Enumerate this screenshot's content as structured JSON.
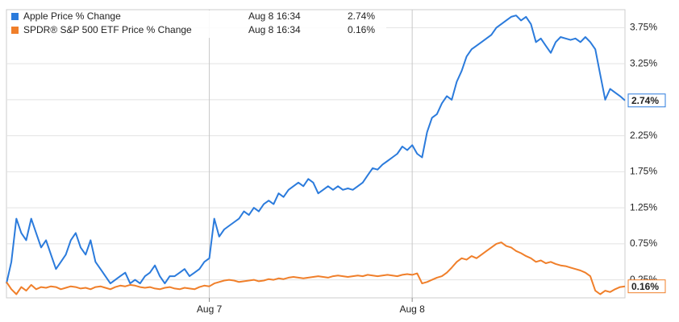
{
  "chart_data": {
    "type": "line",
    "categories": [
      null,
      null,
      null,
      null,
      null,
      null,
      null,
      null,
      null,
      null,
      null,
      null,
      null,
      null,
      null,
      null,
      null,
      null,
      null,
      null,
      null,
      null,
      null,
      null,
      null,
      null,
      null,
      null,
      null,
      null,
      null,
      null,
      null,
      null,
      null,
      null,
      null,
      null,
      null,
      null,
      null,
      "Aug 7",
      null,
      null,
      null,
      null,
      null,
      null,
      null,
      null,
      null,
      null,
      null,
      null,
      null,
      null,
      null,
      null,
      null,
      null,
      null,
      null,
      null,
      null,
      null,
      null,
      null,
      null,
      null,
      null,
      null,
      null,
      null,
      null,
      null,
      null,
      null,
      null,
      null,
      null,
      null,
      null,
      "Aug 8",
      null,
      null,
      null,
      null,
      null,
      null,
      null,
      null,
      null,
      null,
      null,
      null,
      null,
      null,
      null,
      null,
      null,
      null,
      null,
      null,
      null,
      null,
      null,
      null,
      null,
      null,
      null,
      null,
      null,
      null,
      null,
      null,
      null,
      null,
      null,
      null,
      null,
      null,
      null,
      null,
      null,
      null,
      null
    ],
    "series": [
      {
        "name": "Apple Price % Change",
        "color": "#2b7bdc",
        "legend_date": "Aug 8 16:34",
        "end_label": "2.74%",
        "values": [
          0.2,
          0.5,
          1.1,
          0.9,
          0.8,
          1.1,
          0.9,
          0.7,
          0.8,
          0.6,
          0.4,
          0.5,
          0.6,
          0.8,
          0.9,
          0.7,
          0.6,
          0.8,
          0.5,
          0.4,
          0.3,
          0.2,
          0.25,
          0.3,
          0.35,
          0.2,
          0.25,
          0.2,
          0.3,
          0.35,
          0.45,
          0.3,
          0.2,
          0.3,
          0.3,
          0.35,
          0.4,
          0.3,
          0.35,
          0.4,
          0.5,
          0.55,
          1.1,
          0.85,
          0.95,
          1.0,
          1.05,
          1.1,
          1.2,
          1.15,
          1.25,
          1.2,
          1.3,
          1.35,
          1.3,
          1.45,
          1.4,
          1.5,
          1.55,
          1.6,
          1.55,
          1.65,
          1.6,
          1.45,
          1.5,
          1.55,
          1.5,
          1.55,
          1.5,
          1.52,
          1.5,
          1.55,
          1.6,
          1.7,
          1.8,
          1.78,
          1.85,
          1.9,
          1.95,
          2.0,
          2.1,
          2.05,
          2.12,
          2.0,
          1.95,
          2.3,
          2.5,
          2.55,
          2.7,
          2.8,
          2.75,
          3.0,
          3.15,
          3.35,
          3.45,
          3.5,
          3.55,
          3.6,
          3.65,
          3.75,
          3.8,
          3.85,
          3.9,
          3.92,
          3.85,
          3.9,
          3.8,
          3.55,
          3.6,
          3.5,
          3.4,
          3.55,
          3.62,
          3.6,
          3.58,
          3.6,
          3.55,
          3.62,
          3.55,
          3.45,
          3.1,
          2.75,
          2.9,
          2.85,
          2.8,
          2.74
        ]
      },
      {
        "name": "SPDR® S&P 500 ETF Price % Change",
        "color": "#f07f2a",
        "legend_date": "Aug 8 16:34",
        "end_label": "0.16%",
        "values": [
          0.22,
          0.12,
          0.05,
          0.15,
          0.1,
          0.18,
          0.12,
          0.15,
          0.14,
          0.16,
          0.15,
          0.12,
          0.14,
          0.16,
          0.15,
          0.13,
          0.14,
          0.12,
          0.15,
          0.16,
          0.14,
          0.12,
          0.15,
          0.17,
          0.16,
          0.18,
          0.17,
          0.15,
          0.14,
          0.15,
          0.13,
          0.12,
          0.14,
          0.15,
          0.13,
          0.12,
          0.14,
          0.13,
          0.12,
          0.15,
          0.17,
          0.16,
          0.2,
          0.22,
          0.24,
          0.25,
          0.24,
          0.22,
          0.23,
          0.24,
          0.25,
          0.23,
          0.24,
          0.26,
          0.25,
          0.27,
          0.26,
          0.28,
          0.29,
          0.28,
          0.27,
          0.28,
          0.29,
          0.3,
          0.29,
          0.28,
          0.3,
          0.31,
          0.3,
          0.29,
          0.3,
          0.31,
          0.3,
          0.32,
          0.31,
          0.3,
          0.31,
          0.32,
          0.31,
          0.3,
          0.32,
          0.33,
          0.32,
          0.34,
          0.2,
          0.22,
          0.25,
          0.28,
          0.3,
          0.35,
          0.42,
          0.5,
          0.55,
          0.53,
          0.58,
          0.55,
          0.6,
          0.65,
          0.7,
          0.75,
          0.77,
          0.72,
          0.7,
          0.65,
          0.62,
          0.58,
          0.55,
          0.5,
          0.52,
          0.48,
          0.5,
          0.47,
          0.45,
          0.44,
          0.42,
          0.4,
          0.38,
          0.35,
          0.3,
          0.1,
          0.05,
          0.1,
          0.08,
          0.12,
          0.15,
          0.16
        ]
      }
    ],
    "ylim": [
      0,
      4
    ],
    "yticks": [
      {
        "value": 0.25,
        "label": "0.25%"
      },
      {
        "value": 0.75,
        "label": "0.75%"
      },
      {
        "value": 1.25,
        "label": "1.25%"
      },
      {
        "value": 1.75,
        "label": "1.75%"
      },
      {
        "value": 2.25,
        "label": "2.25%"
      },
      {
        "value": 2.75,
        "label": "2.75%"
      },
      {
        "value": 3.25,
        "label": "3.25%"
      },
      {
        "value": 3.75,
        "label": "3.75%"
      }
    ],
    "grid": true
  }
}
